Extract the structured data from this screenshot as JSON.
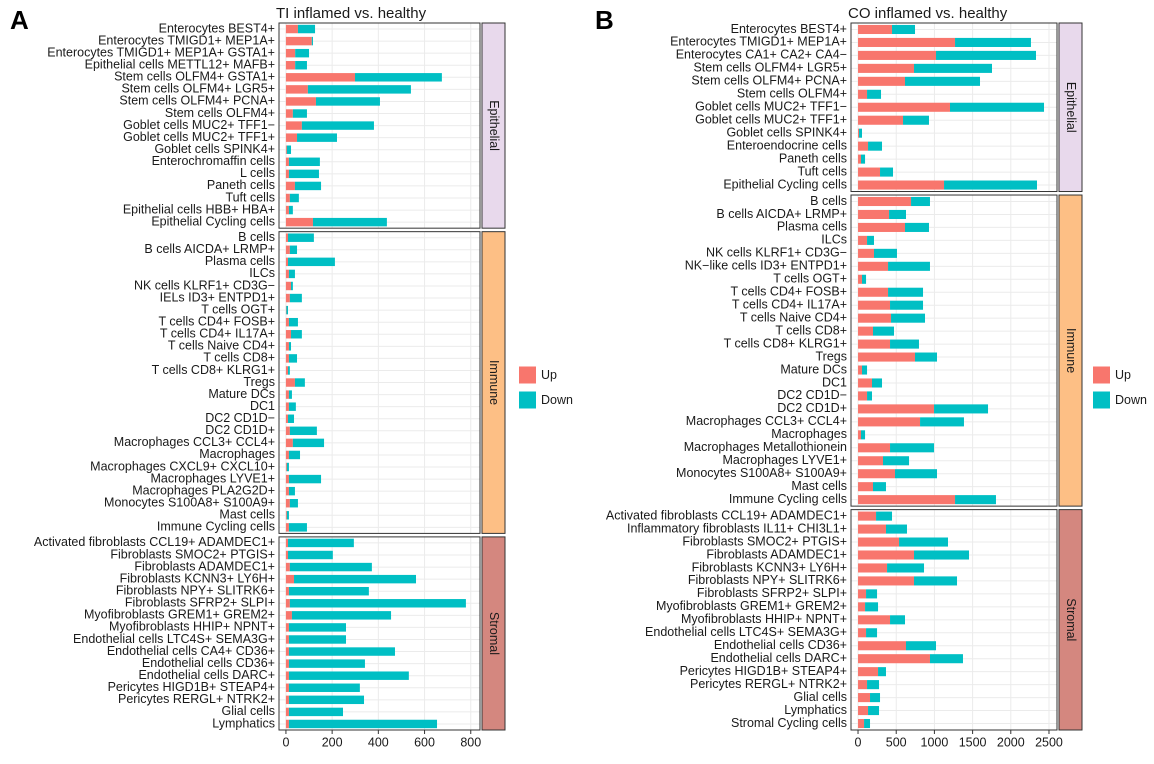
{
  "chart_data": [
    {
      "type": "bar",
      "orientation": "horizontal",
      "stacked": true,
      "tag": "A",
      "title": "TI inflamed vs. healthy",
      "xlim": [
        -30,
        840
      ],
      "xticks": [
        0,
        200,
        400,
        600,
        800
      ],
      "grid": true,
      "legend": "right",
      "series": [
        {
          "name": "Up",
          "color": "#F8766D"
        },
        {
          "name": "Down",
          "color": "#00BFC4"
        }
      ],
      "panels": [
        {
          "label": "Epithelial",
          "color": "#E8D9EC",
          "categories": [
            "Enterocytes BEST4+",
            "Enterocytes TMIGD1+ MEP1A+",
            "Enterocytes TMIGD1+ MEP1A+ GSTA1+",
            "Epithelial cells METTL12+ MAFB+",
            "Stem cells OLFM4+ GSTA1+",
            "Stem cells OLFM4+ LGR5+",
            "Stem cells OLFM4+ PCNA+",
            "Stem cells OLFM4+",
            "Goblet cells MUC2+ TFF1−",
            "Goblet cells MUC2+ TFF1+",
            "Goblet cells SPINK4+",
            "Enterochromaffin cells",
            "L cells",
            "Paneth cells",
            "Tuft cells",
            "Epithelial cells HBB+ HBA+",
            "Epithelial Cycling cells"
          ],
          "series": [
            {
              "values": [
                52,
                112,
                40,
                40,
                299,
                95,
                130,
                30,
                69,
                48,
                4,
                13,
                13,
                39,
                17,
                13,
                117
              ]
            },
            {
              "values": [
                74,
                5,
                60,
                51,
                376,
                446,
                277,
                61,
                312,
                173,
                18,
                134,
                130,
                113,
                39,
                17,
                320
              ]
            }
          ]
        },
        {
          "label": "Immune",
          "color": "#FDBF85",
          "categories": [
            "B cells",
            "B cells AICDA+ LRMP+",
            "Plasma cells",
            "ILCs",
            "NK cells KLRF1+ CD3G−",
            "IELs ID3+ ENTPD1+",
            "T cells OGT+",
            "T cells CD4+ FOSB+",
            "T cells CD4+ IL17A+",
            "T cells Naive CD4+",
            "T cells CD8+",
            "T cells CD8+ KLRG1+",
            "Tregs",
            "Mature DCs",
            "DC1",
            "DC2 CD1D−",
            "DC2 CD1D+",
            "Macrophages CCL3+ CCL4+",
            "Macrophages",
            "Macrophages CXCL9+ CXCL10+",
            "Macrophages LYVE1+",
            "Macrophages PLA2G2D+",
            "Monocytes S100A8+ S100A9+",
            "Mast cells",
            "Immune Cycling cells"
          ],
          "series": [
            {
              "values": [
                9,
                17,
                9,
                13,
                22,
                17,
                2,
                13,
                22,
                13,
                13,
                9,
                39,
                13,
                13,
                9,
                17,
                30,
                13,
                4,
                13,
                13,
                17,
                4,
                13
              ]
            },
            {
              "values": [
                112,
                31,
                203,
                26,
                8,
                52,
                7,
                39,
                47,
                9,
                35,
                8,
                43,
                13,
                30,
                26,
                117,
                135,
                48,
                9,
                139,
                26,
                35,
                9,
                78
              ]
            }
          ]
        },
        {
          "label": "Stromal",
          "color": "#D4877F",
          "categories": [
            "Activated fibroblasts CCL19+ ADAMDEC1+",
            "Fibroblasts SMOC2+ PTGIS+",
            "Fibroblasts ADAMDEC1+",
            "Fibroblasts KCNN3+ LY6H+",
            "Fibroblasts NPY+ SLITRK6+",
            "Fibroblasts SFRP2+ SLPI+",
            "Myofibroblasts GREM1+ GREM2+",
            "Myofibroblasts HHIP+ NPNT+",
            "Endothelial cells LTC4S+ SEMA3G+",
            "Endothelial cells CA4+ CD36+",
            "Endothelial cells CD36+",
            "Endothelial cells DARC+",
            "Pericytes HIGD1B+ STEAP4+",
            "Pericytes RERGL+ NTRK2+",
            "Glial cells",
            "Lymphatics"
          ],
          "series": [
            {
              "values": [
                9,
                9,
                17,
                35,
                13,
                17,
                26,
                13,
                13,
                13,
                13,
                13,
                13,
                13,
                13,
                13
              ]
            },
            {
              "values": [
                285,
                194,
                355,
                528,
                346,
                762,
                429,
                247,
                247,
                459,
                329,
                519,
                307,
                325,
                234,
                641
              ]
            }
          ]
        }
      ]
    },
    {
      "type": "bar",
      "orientation": "horizontal",
      "stacked": true,
      "tag": "B",
      "title": "CO inflamed vs. healthy",
      "xlim": [
        -92,
        2605
      ],
      "xticks": [
        0,
        500,
        1000,
        1500,
        2000,
        2500
      ],
      "grid": true,
      "legend": "right",
      "series": [
        {
          "name": "Up",
          "color": "#F8766D"
        },
        {
          "name": "Down",
          "color": "#00BFC4"
        }
      ],
      "panels": [
        {
          "label": "Epithelial",
          "color": "#E8D9EC",
          "categories": [
            "Enterocytes BEST4+",
            "Enterocytes TMIGD1+ MEP1A+",
            "Enterocytes CA1+ CA2+ CA4−",
            "Stem cells OLFM4+ LGR5+",
            "Stem cells OLFM4+ PCNA+",
            "Stem cells OLFM4+",
            "Goblet cells MUC2+ TFF1−",
            "Goblet cells MUC2+ TFF1+",
            "Goblet cells SPINK4+",
            "Enteroendocrine cells",
            "Paneth cells",
            "Tuft cells",
            "Epithelial Cycling cells"
          ],
          "series": [
            {
              "values": [
                445,
                1270,
                1021,
                733,
                615,
                118,
                1204,
                589,
                13,
                131,
                39,
                288,
                1126
              ]
            },
            {
              "values": [
                301,
                994,
                1309,
                1021,
                982,
                183,
                1231,
                340,
                39,
                183,
                53,
                170,
                1217
              ]
            }
          ]
        },
        {
          "label": "Immune",
          "color": "#FDBF85",
          "categories": [
            "B cells",
            "B cells AICDA+ LRMP+",
            "Plasma cells",
            "ILCs",
            "NK cells KLRF1+ CD3G−",
            "NK−like cells ID3+ ENTPD1+",
            "T cells OGT+",
            "T cells CD4+ FOSB+",
            "T cells CD4+ IL17A+",
            "T cells Naive CD4+",
            "T cells CD8+",
            "T cells CD8+ KLRG1+",
            "Tregs",
            "Mature DCs",
            "DC1",
            "DC2 CD1D−",
            "DC2 CD1D+",
            "Macrophages CCL3+ CCL4+",
            "Macrophages",
            "Macrophages Metallothionein",
            "Macrophages LYVE1+",
            "Monocytes S100A8+ S100A9+",
            "Mast cells",
            "Immune Cycling cells"
          ],
          "series": [
            {
              "values": [
                694,
                406,
                615,
                118,
                209,
                393,
                52,
                393,
                419,
                432,
                196,
                419,
                746,
                52,
                183,
                118,
                995,
                812,
                39,
                419,
                327,
                484,
                196,
                1270
              ]
            },
            {
              "values": [
                248,
                222,
                314,
                91,
                301,
                549,
                53,
                458,
                432,
                445,
                275,
                379,
                288,
                66,
                131,
                65,
                707,
                575,
                53,
                576,
                341,
                550,
                170,
                536
              ]
            }
          ]
        },
        {
          "label": "Stromal",
          "color": "#D4877F",
          "categories": [
            "Activated fibroblasts CCL19+ ADAMDEC1+",
            "Inflammatory fibroblasts IL11+ CHI3L1+",
            "Fibroblasts SMOC2+ PTGIS+",
            "Fibroblasts ADAMDEC1+",
            "Fibroblasts KCNN3+ LY6H+",
            "Fibroblasts NPY+ SLITRK6+",
            "Fibroblasts SFRP2+ SLPI+",
            "Myofibroblasts GREM1+ GREM2+",
            "Myofibroblasts HHIP+ NPNT+",
            "Endothelial cells LTC4S+ SEMA3G+",
            "Endothelial cells CD36+",
            "Endothelial cells DARC+",
            "Pericytes HIGD1B+ STEAP4+",
            "Pericytes RERGL+ NTRK2+",
            "Glial cells",
            "Lymphatics",
            "Stromal Cycling cells"
          ],
          "series": [
            {
              "values": [
                236,
                366,
                537,
                733,
                380,
                733,
                105,
                92,
                419,
                105,
                628,
                942,
                262,
                118,
                157,
                131,
                79
              ]
            },
            {
              "values": [
                209,
                275,
                641,
                720,
                484,
                563,
                144,
                170,
                196,
                144,
                393,
                432,
                104,
                157,
                131,
                144,
                78
              ]
            }
          ]
        }
      ]
    }
  ]
}
